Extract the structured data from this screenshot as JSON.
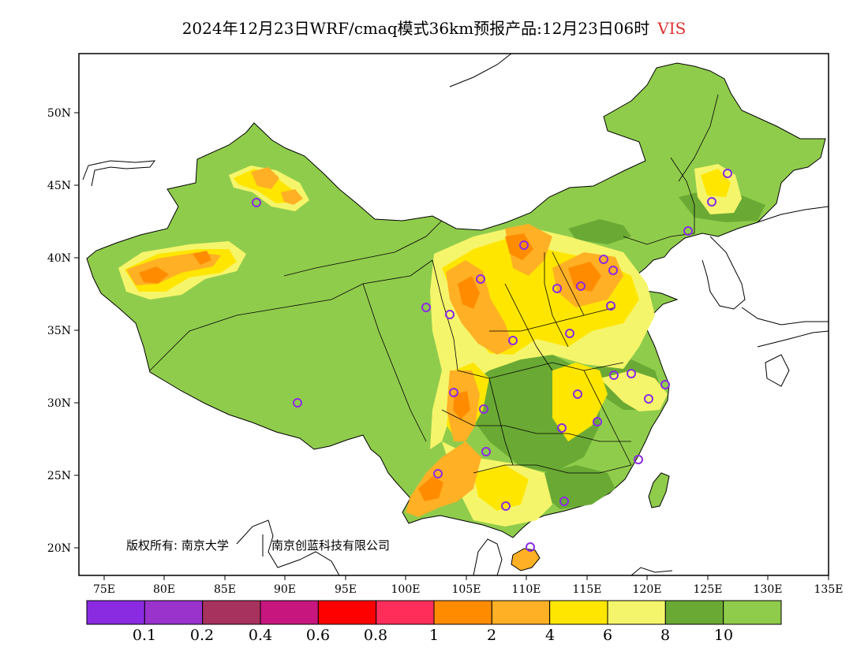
{
  "title": {
    "text": "2024年12月23日WRF/cmaq模式36km预报产品:12月23日06时",
    "variable": "VIS",
    "variable_color": "#e03030"
  },
  "map": {
    "lat_ticks": [
      "50N",
      "45N",
      "40N",
      "35N",
      "30N",
      "25N",
      "20N"
    ],
    "lon_ticks": [
      "75E",
      "80E",
      "85E",
      "90E",
      "95E",
      "100E",
      "105E",
      "110E",
      "115E",
      "120E",
      "125E",
      "130E",
      "135E"
    ],
    "copyright": "版权所有: 南京大学",
    "copyright_company": "南京创蓝科技有限公司"
  },
  "legend": {
    "colors": [
      "#8a2be2",
      "#9933cc",
      "#a8325e",
      "#c8167f",
      "#ff0000",
      "#ff2d5a",
      "#ff8c00",
      "#ffb024",
      "#ffe600",
      "#f5f56b",
      "#6aaa34",
      "#90cc4c"
    ],
    "labels": [
      "0.1",
      "0.2",
      "0.4",
      "0.6",
      "0.8",
      "1",
      "2",
      "4",
      "6",
      "8",
      "10"
    ]
  },
  "colors": {
    "land_high": "#90cc4c",
    "land_mid": "#6aaa34",
    "vis_8": "#f5f56b",
    "vis_6": "#ffe600",
    "vis_4": "#ffb024",
    "vis_2": "#ff8c00",
    "station_marker": "#8a2be2"
  }
}
